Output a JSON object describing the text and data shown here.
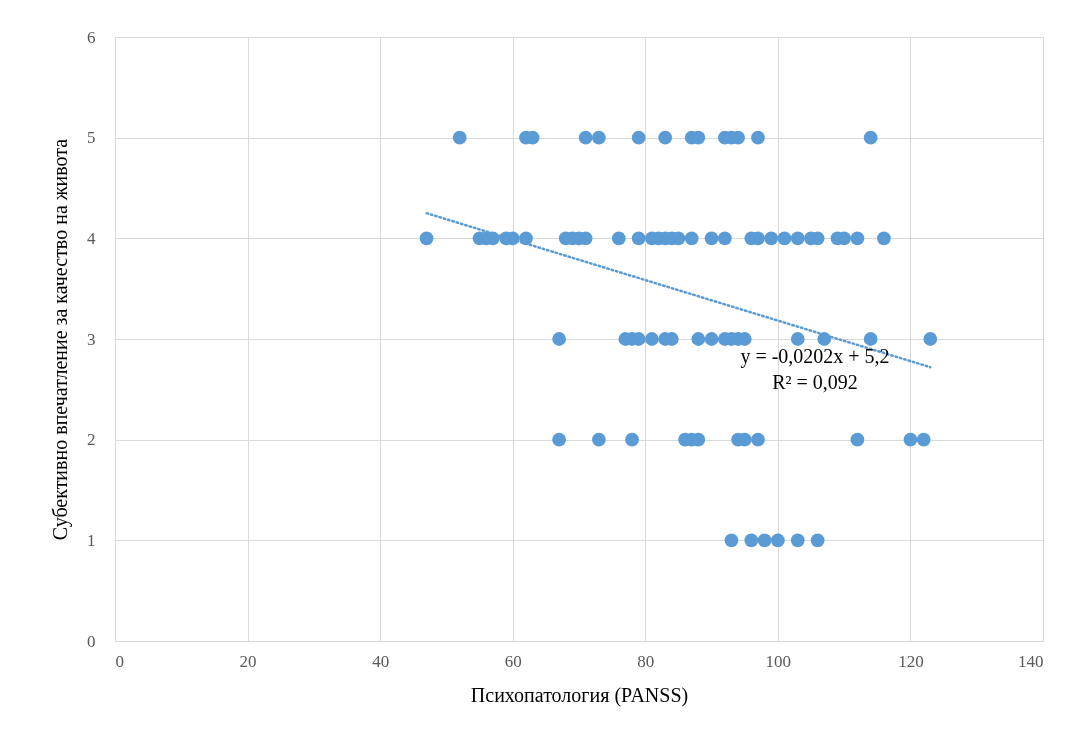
{
  "chart_data": {
    "type": "scatter",
    "xlabel": "Психопатология (PANSS)",
    "ylabel": "Субективно впечатление за качество на живота",
    "series": [
      {
        "type": "scatter",
        "color": "#5b9bd5",
        "marker": "circle",
        "x": [
          52,
          62,
          63,
          71,
          73,
          79,
          83,
          87,
          88,
          92,
          93,
          94,
          97,
          114,
          47,
          55,
          56,
          57,
          59,
          60,
          62,
          68,
          69,
          70,
          71,
          76,
          79,
          81,
          82,
          83,
          84,
          85,
          87,
          90,
          92,
          96,
          97,
          99,
          101,
          103,
          105,
          106,
          109,
          110,
          112,
          116,
          67,
          77,
          78,
          79,
          81,
          83,
          84,
          88,
          90,
          92,
          93,
          94,
          95,
          103,
          107,
          114,
          123,
          67,
          73,
          78,
          86,
          87,
          88,
          94,
          95,
          97,
          112,
          120,
          122,
          93,
          96,
          98,
          100,
          103,
          106
        ],
        "values": [
          5,
          5,
          5,
          5,
          5,
          5,
          5,
          5,
          5,
          5,
          5,
          5,
          5,
          5,
          4,
          4,
          4,
          4,
          4,
          4,
          4,
          4,
          4,
          4,
          4,
          4,
          4,
          4,
          4,
          4,
          4,
          4,
          4,
          4,
          4,
          4,
          4,
          4,
          4,
          4,
          4,
          4,
          4,
          4,
          4,
          4,
          3,
          3,
          3,
          3,
          3,
          3,
          3,
          3,
          3,
          3,
          3,
          3,
          3,
          3,
          3,
          3,
          3,
          2,
          2,
          2,
          2,
          2,
          2,
          2,
          2,
          2,
          2,
          2,
          2,
          1,
          1,
          1,
          1,
          1,
          1
        ]
      },
      {
        "type": "line",
        "color": "#5b9bd5",
        "line_style": "dotted",
        "x": [
          47,
          123
        ],
        "values": [
          4.25,
          2.72
        ]
      }
    ],
    "annotations": [
      "y = -0,0202x + 5,2",
      "R² = 0,092"
    ],
    "xlim": [
      0,
      140
    ],
    "xticks": [
      0,
      20,
      40,
      60,
      80,
      100,
      120,
      140
    ],
    "ylim": [
      0,
      6
    ],
    "yticks": [
      0,
      1,
      2,
      3,
      4,
      5,
      6
    ],
    "grid": true,
    "legend": false
  }
}
